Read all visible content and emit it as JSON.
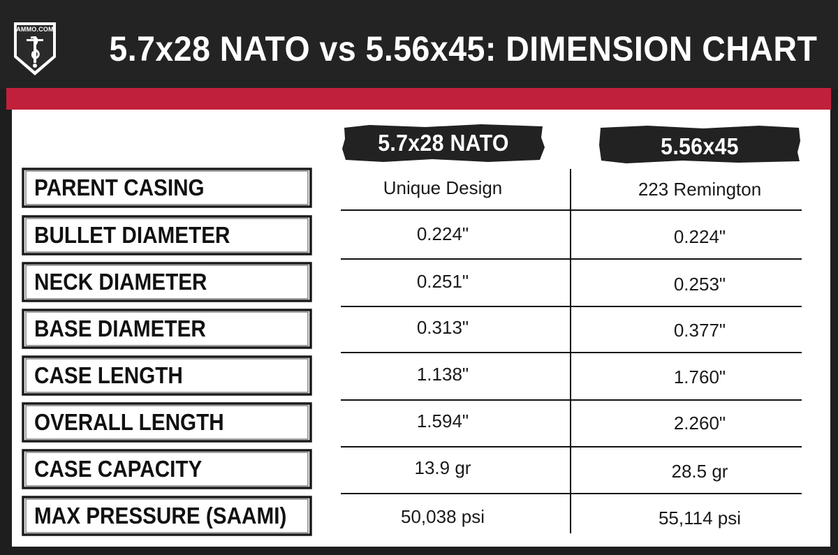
{
  "header": {
    "title": "5.7x28 NATO vs 5.56x45: DIMENSION CHART",
    "logo_text": "AMMO.COM"
  },
  "colors": {
    "header_bg": "#232323",
    "accent_red": "#c1203b",
    "panel_bg": "#ffffff",
    "ink": "#111111"
  },
  "chart_data": {
    "type": "table",
    "columns": [
      "5.7x28 NATO",
      "5.56x45"
    ],
    "rows": [
      {
        "label": "PARENT CASING",
        "values": [
          "Unique Design",
          "223 Remington"
        ]
      },
      {
        "label": "BULLET DIAMETER",
        "values": [
          "0.224\"",
          "0.224\""
        ]
      },
      {
        "label": "NECK DIAMETER",
        "values": [
          "0.251\"",
          "0.253\""
        ]
      },
      {
        "label": "BASE DIAMETER",
        "values": [
          "0.313\"",
          "0.377\""
        ]
      },
      {
        "label": "CASE LENGTH",
        "values": [
          "1.138\"",
          "1.760\""
        ]
      },
      {
        "label": "OVERALL LENGTH",
        "values": [
          "1.594\"",
          "2.260\""
        ]
      },
      {
        "label": "CASE CAPACITY",
        "values": [
          "13.9 gr",
          "28.5 gr"
        ]
      },
      {
        "label": "MAX PRESSURE (SAAMI)",
        "values": [
          "50,038 psi",
          "55,114 psi"
        ]
      }
    ]
  }
}
